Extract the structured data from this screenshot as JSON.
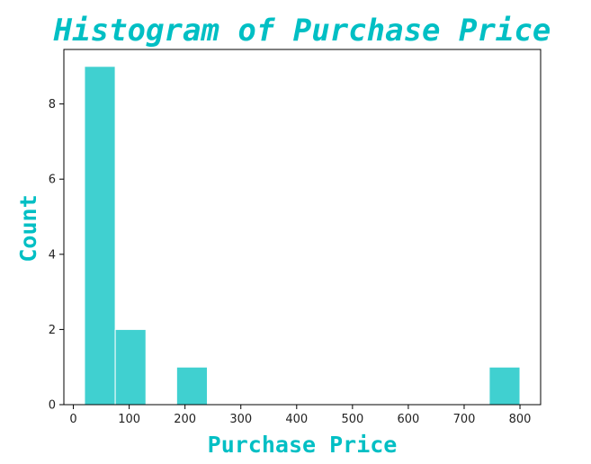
{
  "chart_data": {
    "type": "bar",
    "subtype": "histogram",
    "title": "Histogram of Purchase Price",
    "xlabel": "Purchase Price",
    "ylabel": "Count",
    "bins": [
      {
        "x0": 20,
        "x1": 75,
        "count": 9
      },
      {
        "x0": 75,
        "x1": 130,
        "count": 2
      },
      {
        "x0": 130,
        "x1": 185,
        "count": 0
      },
      {
        "x0": 185,
        "x1": 240,
        "count": 1
      },
      {
        "x0": 240,
        "x1": 295,
        "count": 0
      },
      {
        "x0": 295,
        "x1": 350,
        "count": 0
      },
      {
        "x0": 350,
        "x1": 405,
        "count": 0
      },
      {
        "x0": 405,
        "x1": 460,
        "count": 0
      },
      {
        "x0": 460,
        "x1": 515,
        "count": 0
      },
      {
        "x0": 515,
        "x1": 570,
        "count": 0
      },
      {
        "x0": 570,
        "x1": 625,
        "count": 0
      },
      {
        "x0": 625,
        "x1": 680,
        "count": 0
      },
      {
        "x0": 680,
        "x1": 745,
        "count": 0
      },
      {
        "x0": 745,
        "x1": 800,
        "count": 1
      }
    ],
    "xlim": [
      -17,
      837
    ],
    "ylim": [
      0,
      9.45
    ],
    "xticks": [
      0,
      100,
      200,
      300,
      400,
      500,
      600,
      700,
      800
    ],
    "yticks": [
      0,
      2,
      4,
      6,
      8
    ],
    "bar_color": "#40d0d0",
    "edge_color": "#ffffff",
    "text_color": "#00bfc4",
    "grid": false
  }
}
